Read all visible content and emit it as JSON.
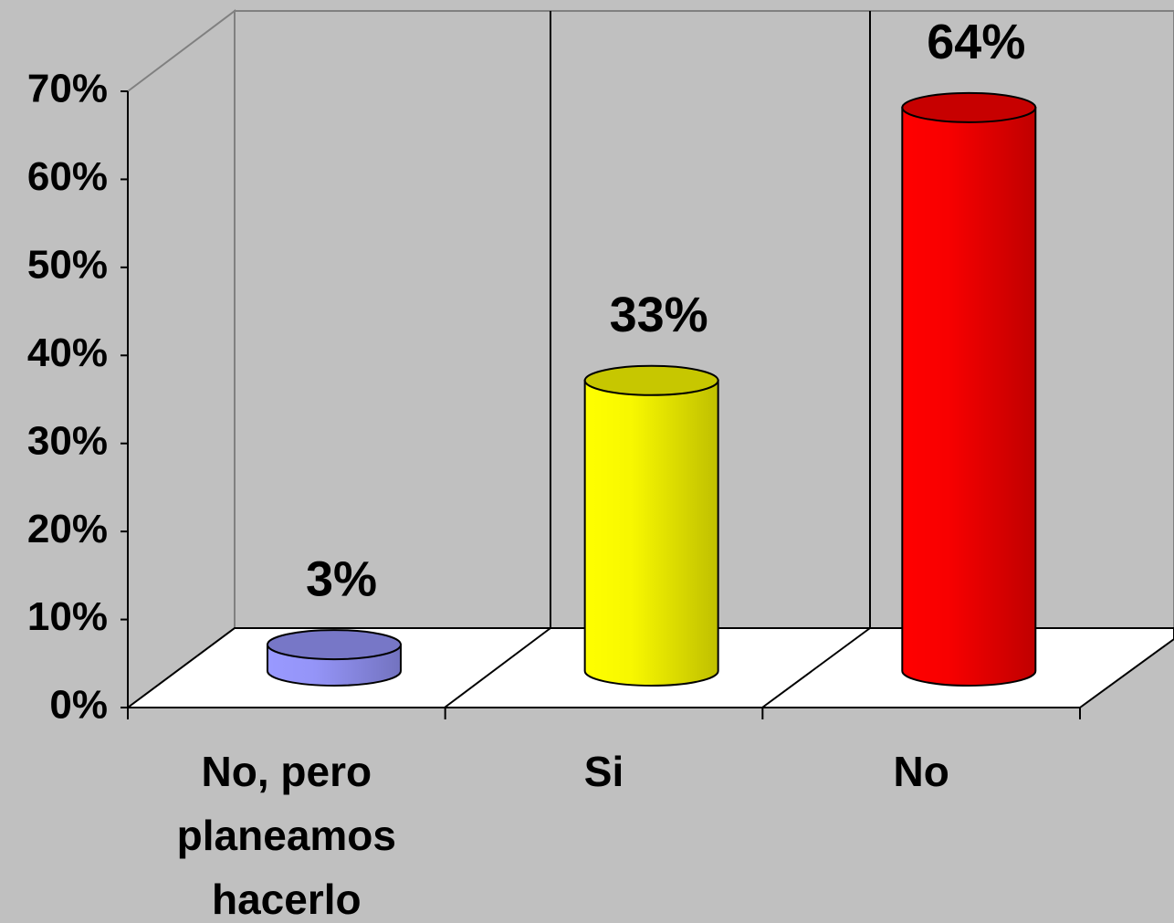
{
  "chart_data": {
    "type": "bar3d",
    "categories": [
      "No, pero planeamos hacerlo",
      "Si",
      "No"
    ],
    "values": [
      3,
      33,
      64
    ],
    "value_labels": [
      "3%",
      "33%",
      "64%"
    ],
    "colors": [
      "#9999ff",
      "#ffff00",
      "#ff0000"
    ],
    "ylim": [
      0,
      70
    ],
    "yticks": [
      {
        "value": 0,
        "label": "0%"
      },
      {
        "value": 10,
        "label": "10%"
      },
      {
        "value": 20,
        "label": "20%"
      },
      {
        "value": 30,
        "label": "30%"
      },
      {
        "value": 40,
        "label": "40%"
      },
      {
        "value": 50,
        "label": "50%"
      },
      {
        "value": 60,
        "label": "60%"
      },
      {
        "value": 70,
        "label": "70%"
      }
    ]
  }
}
